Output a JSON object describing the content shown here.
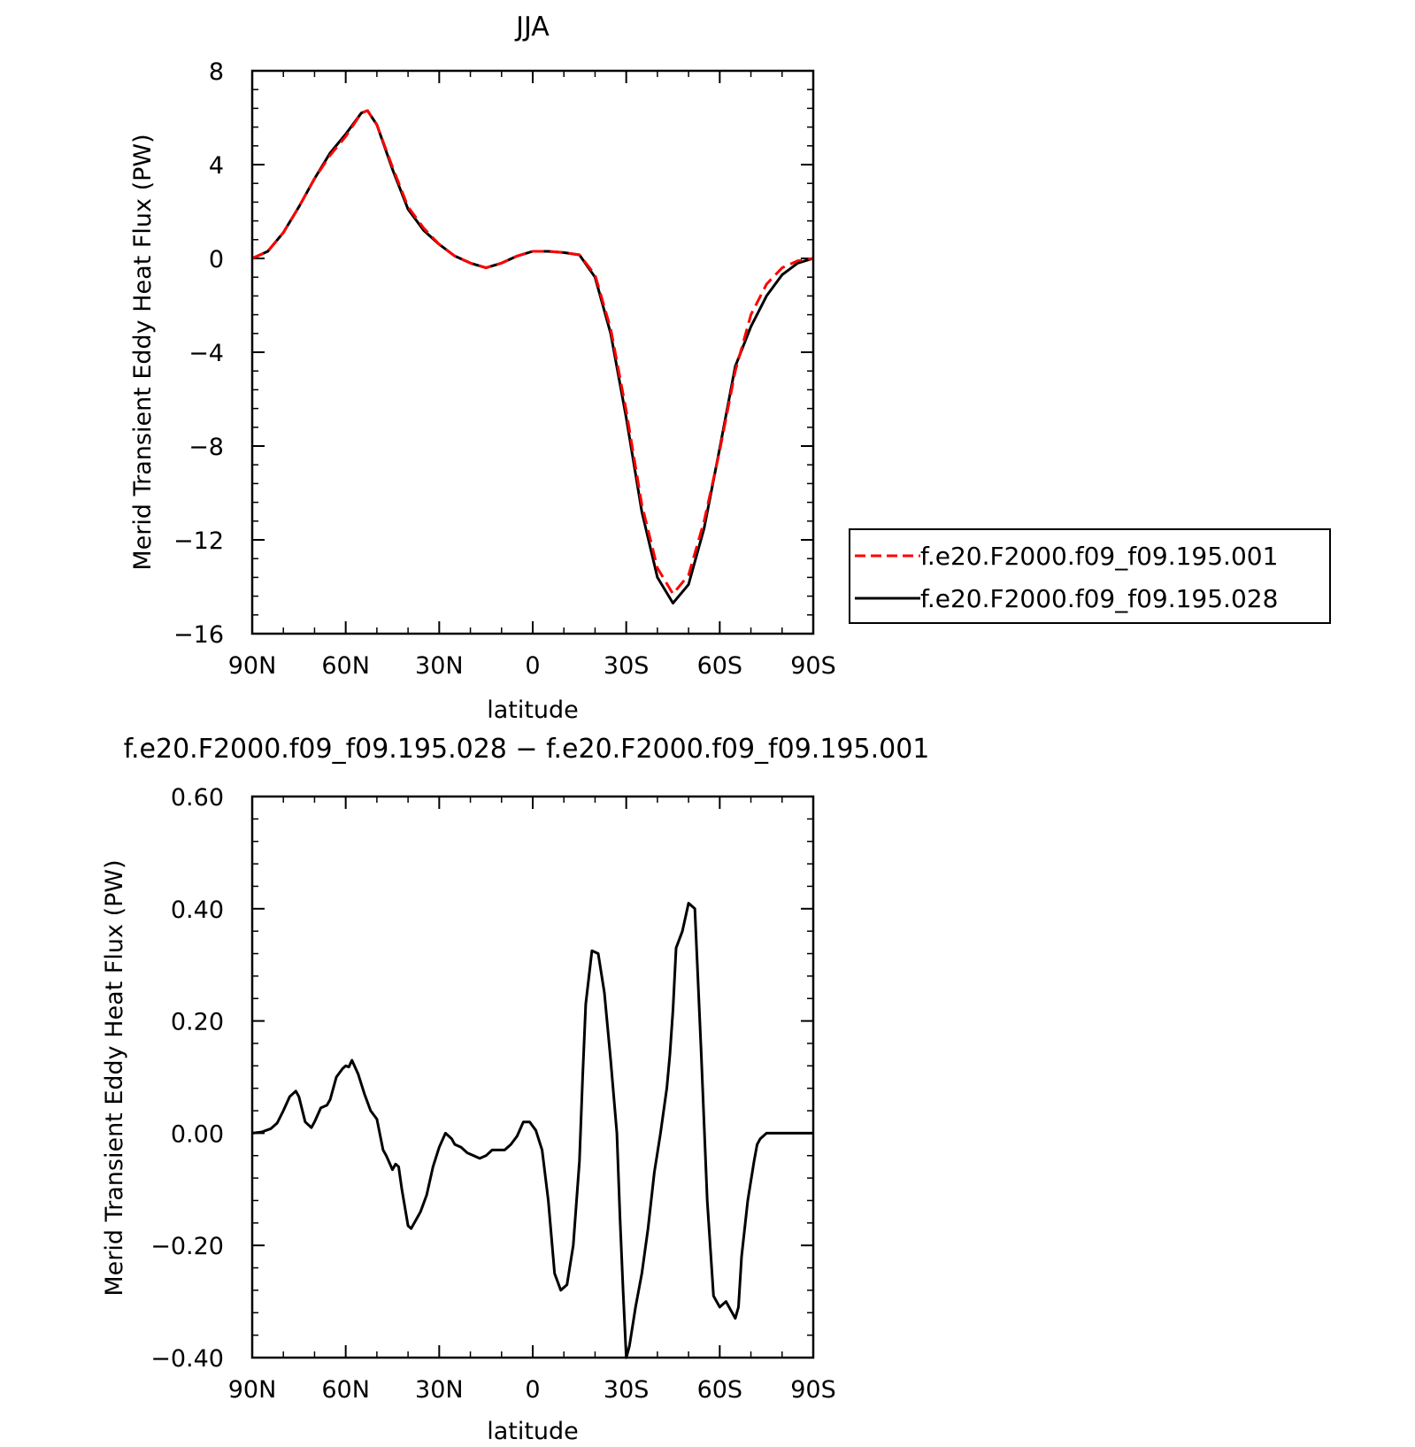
{
  "chart_data": [
    {
      "type": "line",
      "title": "JJA",
      "xlabel": "latitude",
      "ylabel": "Merid Transient Eddy Heat Flux (PW)",
      "xlim": [
        90,
        -90
      ],
      "ylim": [
        -16,
        8
      ],
      "x_ticks": [
        90,
        60,
        30,
        0,
        -30,
        -60,
        -90
      ],
      "x_tick_labels": [
        "90N",
        "60N",
        "30N",
        "0",
        "30S",
        "60S",
        "90S"
      ],
      "y_ticks": [
        8,
        4,
        0,
        -4,
        -8,
        -12,
        -16
      ],
      "y_tick_labels": [
        "8",
        "4",
        "0",
        "−4",
        "−8",
        "−12",
        "−16"
      ],
      "legend": "right",
      "grid": false,
      "series": [
        {
          "name": "f.e20.F2000.f09_f09.195.001",
          "color": "#ff0000",
          "dash": "dashed",
          "x": [
            90,
            85,
            80,
            75,
            70,
            65,
            60,
            55,
            53,
            50,
            45,
            40,
            35,
            30,
            25,
            20,
            15,
            10,
            5,
            0,
            -5,
            -10,
            -15,
            -20,
            -25,
            -30,
            -35,
            -40,
            -45,
            -50,
            -55,
            -60,
            -65,
            -70,
            -75,
            -80,
            -85,
            -90
          ],
          "values": [
            0,
            0.3,
            1.1,
            2.2,
            3.4,
            4.4,
            5.2,
            6.2,
            6.3,
            5.7,
            3.9,
            2.2,
            1.3,
            0.6,
            0.1,
            -0.2,
            -0.4,
            -0.2,
            0.1,
            0.3,
            0.3,
            0.25,
            0.15,
            -0.7,
            -3.0,
            -6.5,
            -10.5,
            -13.2,
            -14.3,
            -13.5,
            -11.2,
            -8.2,
            -4.8,
            -2.4,
            -1.1,
            -0.4,
            -0.1,
            0
          ]
        },
        {
          "name": "f.e20.F2000.f09_f09.195.028",
          "color": "#000000",
          "dash": "solid",
          "x": [
            90,
            85,
            80,
            75,
            70,
            65,
            60,
            55,
            53,
            50,
            45,
            40,
            35,
            30,
            25,
            20,
            15,
            10,
            5,
            0,
            -5,
            -10,
            -15,
            -20,
            -25,
            -30,
            -35,
            -40,
            -45,
            -50,
            -55,
            -60,
            -65,
            -70,
            -75,
            -80,
            -85,
            -90
          ],
          "values": [
            0,
            0.3,
            1.1,
            2.2,
            3.4,
            4.5,
            5.3,
            6.2,
            6.3,
            5.7,
            3.8,
            2.1,
            1.2,
            0.6,
            0.1,
            -0.2,
            -0.4,
            -0.2,
            0.1,
            0.3,
            0.3,
            0.25,
            0.15,
            -0.8,
            -3.2,
            -6.8,
            -10.8,
            -13.6,
            -14.7,
            -13.9,
            -11.5,
            -8.1,
            -4.6,
            -2.9,
            -1.6,
            -0.7,
            -0.2,
            0
          ]
        }
      ]
    },
    {
      "type": "line",
      "title": "f.e20.F2000.f09_f09.195.028 − f.e20.F2000.f09_f09.195.001",
      "xlabel": "latitude",
      "ylabel": "Merid Transient Eddy Heat Flux (PW)",
      "xlim": [
        90,
        -90
      ],
      "ylim": [
        -0.4,
        0.6
      ],
      "x_ticks": [
        90,
        60,
        30,
        0,
        -30,
        -60,
        -90
      ],
      "x_tick_labels": [
        "90N",
        "60N",
        "30N",
        "0",
        "30S",
        "60S",
        "90S"
      ],
      "y_ticks": [
        0.6,
        0.4,
        0.2,
        0.0,
        -0.2,
        -0.4
      ],
      "y_tick_labels": [
        "0.60",
        "0.40",
        "0.20",
        "0.00",
        "−0.20",
        "−0.40"
      ],
      "grid": false,
      "series": [
        {
          "color": "#000000",
          "dash": "solid",
          "x": [
            90,
            87,
            84,
            82,
            80,
            78,
            76,
            75,
            73,
            71,
            70,
            68,
            66,
            65,
            63,
            61,
            60,
            59,
            58,
            56,
            54,
            52,
            50,
            48,
            47,
            45,
            44,
            43,
            42,
            40,
            39,
            37,
            36,
            34,
            32,
            30,
            28,
            26,
            25,
            23,
            21,
            19,
            17,
            15,
            13,
            11,
            9,
            7,
            5,
            3,
            1,
            -1,
            -3,
            -5,
            -7,
            -9,
            -11,
            -13,
            -15,
            -16,
            -17,
            -19,
            -21,
            -23,
            -25,
            -27,
            -28,
            -29,
            -30,
            -31,
            -33,
            -35,
            -37,
            -39,
            -41,
            -43,
            -44,
            -45,
            -46,
            -48,
            -50,
            -52,
            -54,
            -56,
            -58,
            -60,
            -62,
            -64,
            -65,
            -66,
            -67,
            -69,
            -71,
            -72,
            -73,
            -74,
            -75,
            -76,
            -77,
            -78,
            -80,
            -82,
            -84,
            -86,
            -87,
            -88,
            -89,
            -90
          ],
          "values": [
            0.0,
            0.002,
            0.008,
            0.018,
            0.04,
            0.065,
            0.075,
            0.065,
            0.02,
            0.01,
            0.02,
            0.045,
            0.05,
            0.06,
            0.1,
            0.115,
            0.12,
            0.118,
            0.13,
            0.105,
            0.07,
            0.04,
            0.025,
            -0.03,
            -0.04,
            -0.065,
            -0.055,
            -0.06,
            -0.1,
            -0.165,
            -0.17,
            -0.15,
            -0.14,
            -0.11,
            -0.06,
            -0.025,
            0.0,
            -0.01,
            -0.02,
            -0.025,
            -0.035,
            -0.04,
            -0.045,
            -0.04,
            -0.03,
            -0.03,
            -0.03,
            -0.02,
            -0.005,
            0.02,
            0.02,
            0.005,
            -0.03,
            -0.12,
            -0.25,
            -0.28,
            -0.27,
            -0.2,
            -0.05,
            0.1,
            0.23,
            0.325,
            0.32,
            0.25,
            0.13,
            0.0,
            -0.15,
            -0.28,
            -0.4,
            -0.38,
            -0.31,
            -0.25,
            -0.17,
            -0.07,
            0.0,
            0.08,
            0.14,
            0.22,
            0.33,
            0.36,
            0.41,
            0.4,
            0.15,
            -0.12,
            -0.29,
            -0.31,
            -0.3,
            -0.32,
            -0.33,
            -0.31,
            -0.22,
            -0.12,
            -0.05,
            -0.02,
            -0.01,
            -0.005,
            0.0,
            0.0,
            0.0,
            0.0,
            0.0,
            0.0,
            0.0,
            0.0,
            0.0,
            0.0,
            0.0,
            0.0
          ]
        }
      ]
    }
  ]
}
